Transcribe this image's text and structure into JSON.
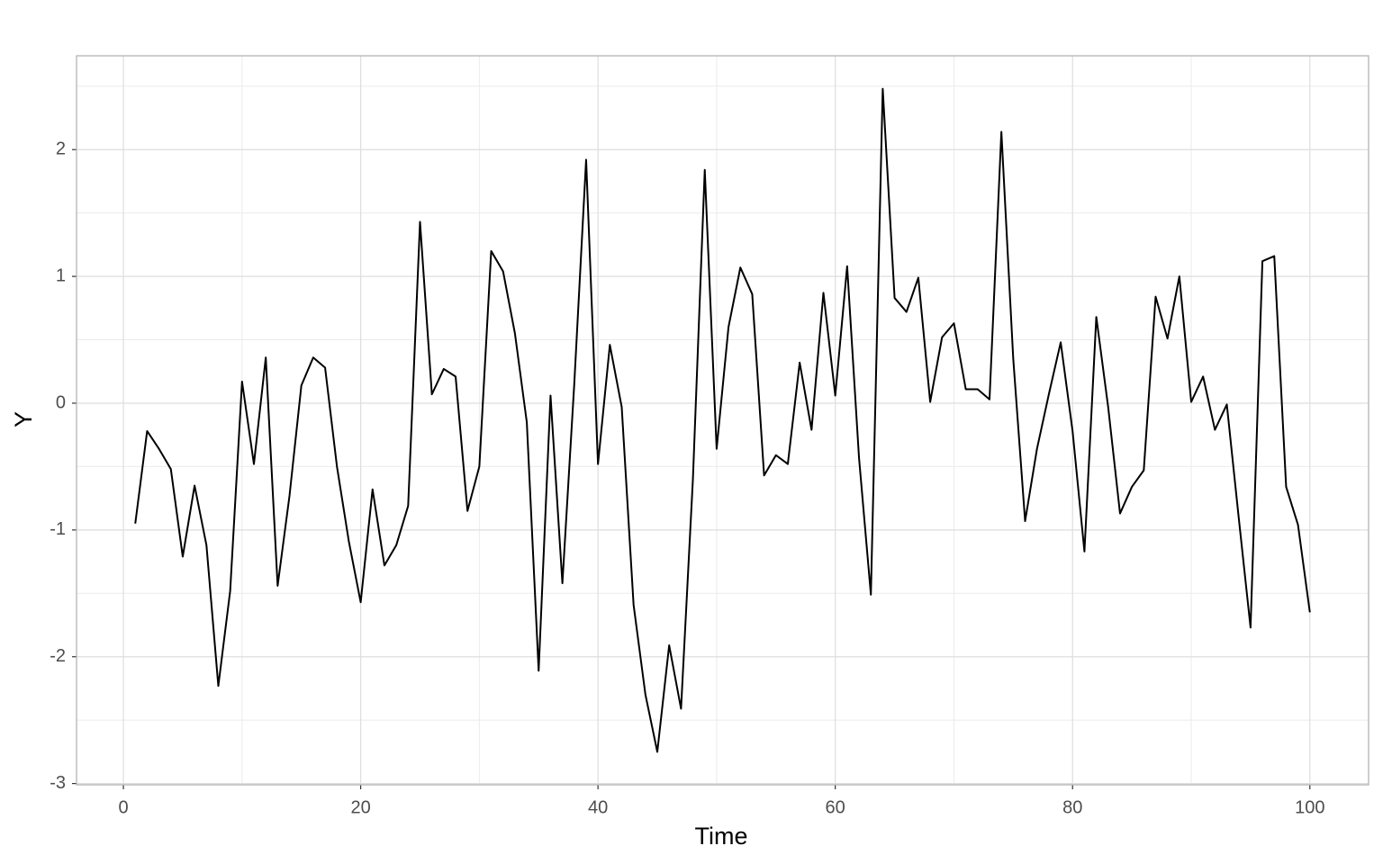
{
  "chart_data": {
    "type": "line",
    "x_label": "Time",
    "y_label": "Y",
    "x": [
      1,
      2,
      3,
      4,
      5,
      6,
      7,
      8,
      9,
      10,
      11,
      12,
      13,
      14,
      15,
      16,
      17,
      18,
      19,
      20,
      21,
      22,
      23,
      24,
      25,
      26,
      27,
      28,
      29,
      30,
      31,
      32,
      33,
      34,
      35,
      36,
      37,
      38,
      39,
      40,
      41,
      42,
      43,
      44,
      45,
      46,
      47,
      48,
      49,
      50,
      51,
      52,
      53,
      54,
      55,
      56,
      57,
      58,
      59,
      60,
      61,
      62,
      63,
      64,
      65,
      66,
      67,
      68,
      69,
      70,
      71,
      72,
      73,
      74,
      75,
      76,
      77,
      78,
      79,
      80,
      81,
      82,
      83,
      84,
      85,
      86,
      87,
      88,
      89,
      90,
      91,
      92,
      93,
      94,
      95,
      96,
      97,
      98,
      99,
      100
    ],
    "values": [
      -0.95,
      -0.22,
      -0.36,
      -0.52,
      -1.21,
      -0.65,
      -1.12,
      -2.23,
      -1.48,
      0.17,
      -0.48,
      0.36,
      -1.44,
      -0.73,
      0.14,
      0.36,
      0.28,
      -0.5,
      -1.09,
      -1.57,
      -0.68,
      -1.28,
      -1.12,
      -0.81,
      1.43,
      0.07,
      0.27,
      0.21,
      -0.85,
      -0.5,
      1.2,
      1.04,
      0.55,
      -0.15,
      -2.11,
      0.06,
      -1.42,
      0.15,
      1.92,
      -0.48,
      0.46,
      -0.03,
      -1.59,
      -2.3,
      -2.75,
      -1.91,
      -2.41,
      -0.6,
      1.84,
      -0.36,
      0.6,
      1.07,
      0.86,
      -0.57,
      -0.41,
      -0.48,
      0.32,
      -0.21,
      0.87,
      0.06,
      1.08,
      -0.43,
      -1.51,
      2.48,
      0.83,
      0.72,
      0.99,
      0.01,
      0.52,
      0.63,
      0.11,
      0.11,
      0.03,
      2.14,
      0.35,
      -0.93,
      -0.36,
      0.07,
      0.48,
      -0.22,
      -1.17,
      0.68,
      -0.03,
      -0.87,
      -0.66,
      -0.53,
      0.84,
      0.51,
      1.0,
      0.01,
      0.21,
      -0.21,
      -0.01,
      -0.9,
      -1.77,
      1.12,
      1.16,
      -0.66,
      -0.96,
      -1.65
    ],
    "color": "#000000",
    "xlim": [
      -3.95,
      104.95
    ],
    "ylim": [
      -3.01,
      2.74
    ],
    "xticks": [
      0,
      20,
      40,
      60,
      80,
      100
    ],
    "yticks": [
      -3,
      -2,
      -1,
      0,
      1,
      2
    ],
    "minor_xticks": [
      10,
      30,
      50,
      70,
      90
    ],
    "minor_yticks": [
      -2.5,
      -1.5,
      -0.5,
      0.5,
      1.5,
      2.5
    ],
    "grid": true
  }
}
